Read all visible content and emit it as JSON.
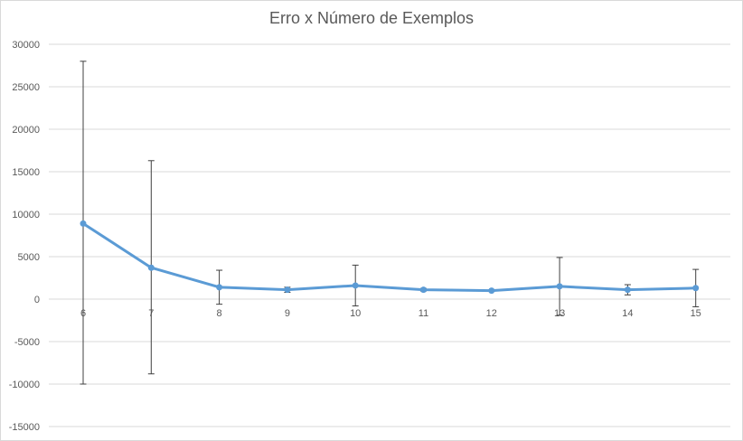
{
  "chart_data": {
    "type": "line",
    "title": "Erro x Número de Exemplos",
    "categories": [
      "6",
      "7",
      "8",
      "9",
      "10",
      "11",
      "12",
      "13",
      "14",
      "15"
    ],
    "series": [
      {
        "values": [
          8900,
          3700,
          1400,
          1100,
          1600,
          1100,
          1000,
          1500,
          1100,
          1300
        ],
        "error_plus": [
          19100,
          12600,
          2000,
          300,
          2400,
          150,
          100,
          3400,
          600,
          2200
        ],
        "error_minus": [
          18900,
          12500,
          2000,
          300,
          2400,
          150,
          100,
          3400,
          600,
          2200
        ]
      }
    ],
    "yticks": [
      30000,
      25000,
      20000,
      15000,
      10000,
      5000,
      0,
      -5000,
      -10000,
      -15000
    ],
    "ylim": [
      -15000,
      30000
    ],
    "gridlines": true,
    "colors": {
      "series": "#5b9bd5",
      "grid": "#d9d9d9",
      "errorbar": "#404040",
      "text": "#595959"
    }
  }
}
